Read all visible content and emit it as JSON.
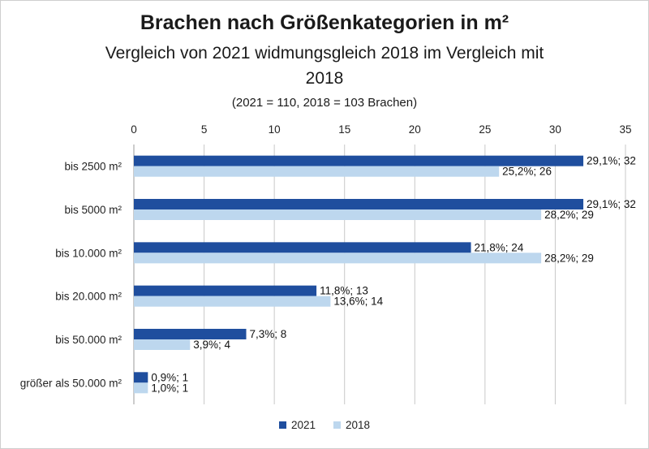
{
  "chart_data": {
    "type": "bar",
    "orientation": "horizontal",
    "title": "Brachen nach Größenkategorien in m²",
    "subtitle": "Vergleich von 2021 widmungsgleich 2018 im Vergleich mit 2018",
    "note": "(2021 = 110, 2018 = 103 Brachen)",
    "categories": [
      "bis 2500 m²",
      "bis 5000 m²",
      "bis 10.000 m²",
      "bis 20.000 m²",
      "bis 50.000 m²",
      "größer als 50.000 m²"
    ],
    "series": [
      {
        "name": "2021",
        "color": "#1f4e9e",
        "values": [
          32,
          32,
          24,
          13,
          8,
          1
        ],
        "labels": [
          "29,1%; 32",
          "29,1%; 32",
          "21,8%; 24",
          "11,8%; 13",
          "7,3%; 8",
          "0,9%; 1"
        ]
      },
      {
        "name": "2018",
        "color": "#bdd7ee",
        "values": [
          26,
          29,
          29,
          14,
          4,
          1
        ],
        "labels": [
          "25,2%; 26",
          "28,2%; 29",
          "28,2%; 29",
          "13,6%; 14",
          "3,9%; 4",
          "1,0%; 1"
        ]
      }
    ],
    "xlim": [
      0,
      35
    ],
    "xticks": [
      "0",
      "5",
      "10",
      "15",
      "20",
      "25",
      "30",
      "35"
    ],
    "axis_position": "top",
    "grid": true,
    "legend": "bottom"
  }
}
